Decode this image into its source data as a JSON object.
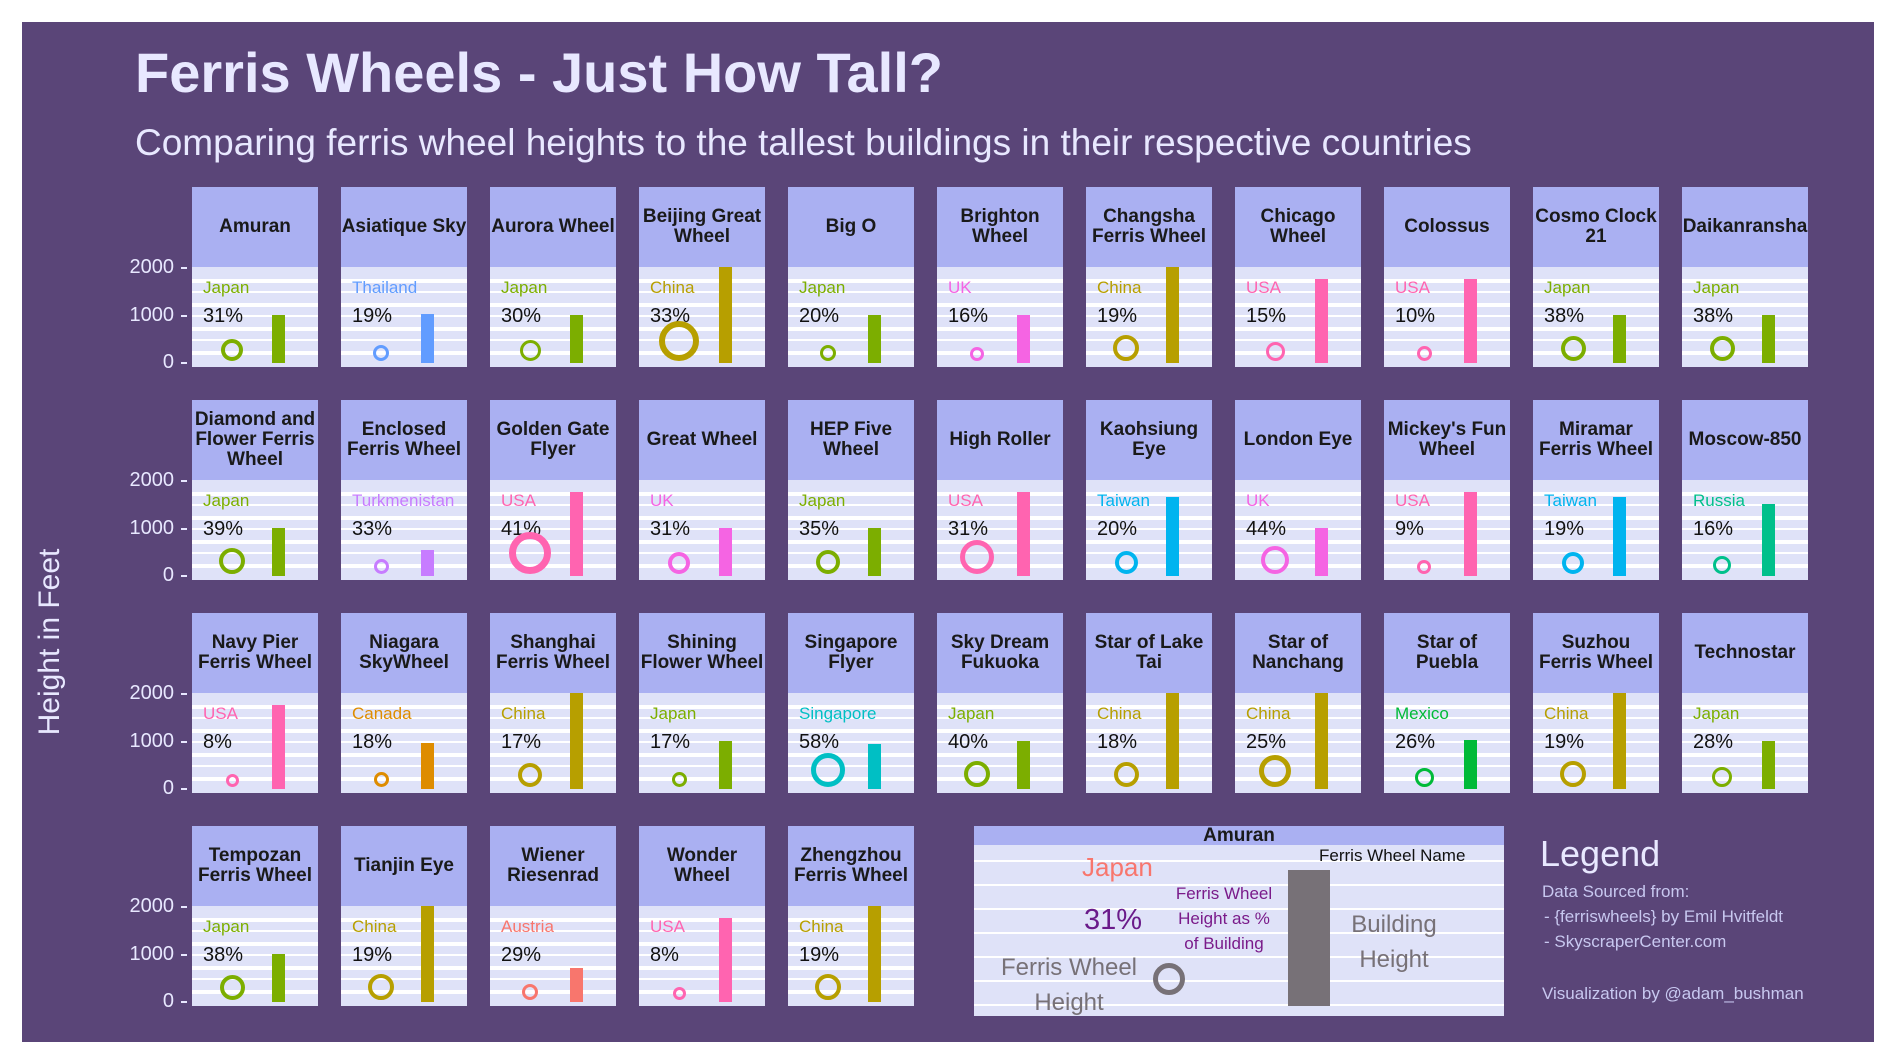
{
  "title": "Ferris Wheels - Just How Tall?",
  "subtitle": "Comparing ferris wheel heights to the tallest buildings in their respective countries",
  "y_axis_label": "Height in Feet",
  "legend": {
    "heading": "Legend",
    "source_line1": "Data Sourced from:",
    "source_line2": "- {ferriswheels} by Emil Hvitfeldt",
    "source_line3": "- SkyscraperCenter.com",
    "credit": "Visualization by @adam_bushman",
    "example_wheel": "Amuran",
    "example_country": "Japan",
    "example_pct": "31%",
    "label_name": "Ferris Wheel Name",
    "label_pct_1": "Ferris Wheel",
    "label_pct_2": "Height as %",
    "label_pct_3": "of Building",
    "label_building_1": "Building",
    "label_building_2": "Height",
    "label_wheel_1": "Ferris Wheel",
    "label_wheel_2": "Height"
  },
  "colors": {
    "background": "#5a4578",
    "strip": "#aab0f2",
    "panel": "#dfe2f8",
    "Japan": "#7cae00",
    "Thailand": "#619cff",
    "China": "#b79f00",
    "UK": "#f564e3",
    "USA": "#ff64b0",
    "Turkmenistan": "#c77cff",
    "Taiwan": "#00b4ef",
    "Russia": "#00c08b",
    "Canada": "#de8c00",
    "Singapore": "#00bfc4",
    "Mexico": "#00ba38",
    "Austria": "#f8766d",
    "legend_grey": "#777177"
  },
  "chart_data": {
    "type": "small-multiples",
    "facet_by": "Ferris wheel name",
    "panel_layout": {
      "rows": 4,
      "cols": 11
    },
    "y_axis": {
      "label": "Height in Feet",
      "range": [
        0,
        2000
      ],
      "ticks": [
        0,
        1000,
        2000
      ]
    },
    "encoding": {
      "bar": "tallest building height in the wheel's country",
      "circle": "ferris wheel height",
      "label": "ferris wheel height as % of building height"
    },
    "panels": [
      {
        "name": "Amuran",
        "country": "Japan",
        "pct": "31%",
        "building_ft": 1000,
        "wheel_ft": 310
      },
      {
        "name": "Asiatique Sky",
        "country": "Thailand",
        "pct": "19%",
        "building_ft": 1030,
        "wheel_ft": 196
      },
      {
        "name": "Aurora Wheel",
        "country": "Japan",
        "pct": "30%",
        "building_ft": 1000,
        "wheel_ft": 300
      },
      {
        "name": "Beijing Great Wheel",
        "country": "China",
        "pct": "33%",
        "building_ft": 2073,
        "wheel_ft": 684
      },
      {
        "name": "Big O",
        "country": "Japan",
        "pct": "20%",
        "building_ft": 1000,
        "wheel_ft": 200
      },
      {
        "name": "Brighton Wheel",
        "country": "UK",
        "pct": "16%",
        "building_ft": 1016,
        "wheel_ft": 163
      },
      {
        "name": "Changsha Ferris Wheel",
        "country": "China",
        "pct": "19%",
        "building_ft": 2073,
        "wheel_ft": 394
      },
      {
        "name": "Chicago Wheel",
        "country": "USA",
        "pct": "15%",
        "building_ft": 1776,
        "wheel_ft": 266
      },
      {
        "name": "Colossus",
        "country": "USA",
        "pct": "10%",
        "building_ft": 1776,
        "wheel_ft": 178
      },
      {
        "name": "Cosmo Clock 21",
        "country": "Japan",
        "pct": "38%",
        "building_ft": 1000,
        "wheel_ft": 380
      },
      {
        "name": "Daikanransha",
        "country": "Japan",
        "pct": "38%",
        "building_ft": 1000,
        "wheel_ft": 380
      },
      {
        "name": "Diamond and Flower Ferris Wheel",
        "country": "Japan",
        "pct": "39%",
        "building_ft": 1000,
        "wheel_ft": 390
      },
      {
        "name": "Enclosed Ferris Wheel",
        "country": "Turkmenistan",
        "pct": "33%",
        "building_ft": 550,
        "wheel_ft": 180
      },
      {
        "name": "Golden Gate Flyer",
        "country": "USA",
        "pct": "41%",
        "building_ft": 1776,
        "wheel_ft": 728
      },
      {
        "name": "Great Wheel",
        "country": "UK",
        "pct": "31%",
        "building_ft": 1016,
        "wheel_ft": 315
      },
      {
        "name": "HEP Five Wheel",
        "country": "Japan",
        "pct": "35%",
        "building_ft": 1000,
        "wheel_ft": 350
      },
      {
        "name": "High Roller",
        "country": "USA",
        "pct": "31%",
        "building_ft": 1776,
        "wheel_ft": 550
      },
      {
        "name": "Kaohsiung Eye",
        "country": "Taiwan",
        "pct": "20%",
        "building_ft": 1667,
        "wheel_ft": 333
      },
      {
        "name": "London Eye",
        "country": "UK",
        "pct": "44%",
        "building_ft": 1016,
        "wheel_ft": 443
      },
      {
        "name": "Mickey's Fun Wheel",
        "country": "USA",
        "pct": "9%",
        "building_ft": 1776,
        "wheel_ft": 160
      },
      {
        "name": "Miramar Ferris Wheel",
        "country": "Taiwan",
        "pct": "19%",
        "building_ft": 1667,
        "wheel_ft": 316
      },
      {
        "name": "Moscow-850",
        "country": "Russia",
        "pct": "16%",
        "building_ft": 1516,
        "wheel_ft": 240
      },
      {
        "name": "Navy Pier Ferris Wheel",
        "country": "USA",
        "pct": "8%",
        "building_ft": 1776,
        "wheel_ft": 142
      },
      {
        "name": "Niagara SkyWheel",
        "country": "Canada",
        "pct": "18%",
        "building_ft": 978,
        "wheel_ft": 176
      },
      {
        "name": "Shanghai Ferris Wheel",
        "country": "China",
        "pct": "17%",
        "building_ft": 2073,
        "wheel_ft": 352
      },
      {
        "name": "Shining Flower Wheel",
        "country": "Japan",
        "pct": "17%",
        "building_ft": 1000,
        "wheel_ft": 170
      },
      {
        "name": "Singapore Flyer",
        "country": "Singapore",
        "pct": "58%",
        "building_ft": 951,
        "wheel_ft": 551
      },
      {
        "name": "Sky Dream Fukuoka",
        "country": "Japan",
        "pct": "40%",
        "building_ft": 1000,
        "wheel_ft": 400
      },
      {
        "name": "Star of Lake Tai",
        "country": "China",
        "pct": "18%",
        "building_ft": 2073,
        "wheel_ft": 373
      },
      {
        "name": "Star of Nanchang",
        "country": "China",
        "pct": "25%",
        "building_ft": 2073,
        "wheel_ft": 518
      },
      {
        "name": "Star of Puebla",
        "country": "Mexico",
        "pct": "26%",
        "building_ft": 1024,
        "wheel_ft": 266
      },
      {
        "name": "Suzhou Ferris Wheel",
        "country": "China",
        "pct": "19%",
        "building_ft": 2073,
        "wheel_ft": 394
      },
      {
        "name": "Technostar",
        "country": "Japan",
        "pct": "28%",
        "building_ft": 1000,
        "wheel_ft": 280
      },
      {
        "name": "Tempozan Ferris Wheel",
        "country": "Japan",
        "pct": "38%",
        "building_ft": 1000,
        "wheel_ft": 380
      },
      {
        "name": "Tianjin Eye",
        "country": "China",
        "pct": "19%",
        "building_ft": 2073,
        "wheel_ft": 394
      },
      {
        "name": "Wiener Riesenrad",
        "country": "Austria",
        "pct": "29%",
        "building_ft": 722,
        "wheel_ft": 209
      },
      {
        "name": "Wonder Wheel",
        "country": "USA",
        "pct": "8%",
        "building_ft": 1776,
        "wheel_ft": 142
      },
      {
        "name": "Zhengzhou Ferris Wheel",
        "country": "China",
        "pct": "19%",
        "building_ft": 2073,
        "wheel_ft": 394
      }
    ]
  }
}
